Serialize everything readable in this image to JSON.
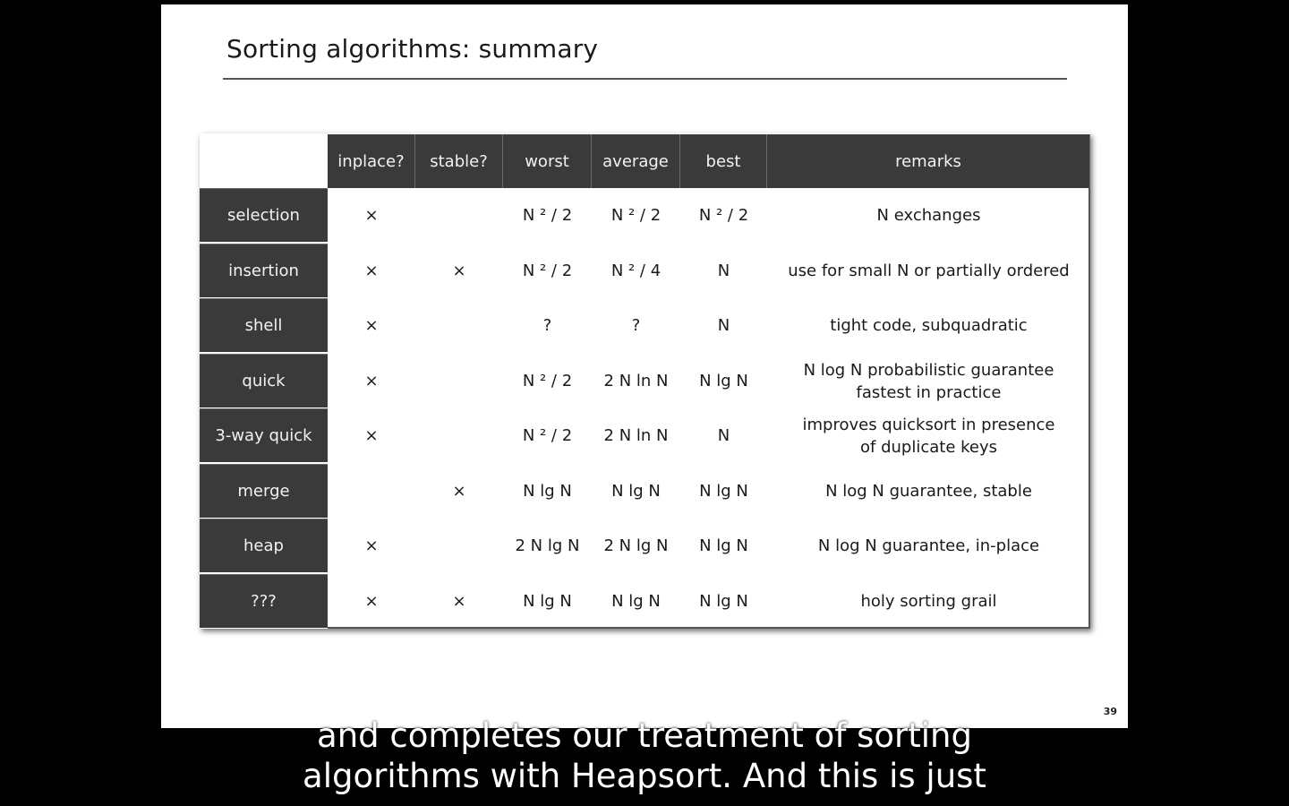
{
  "slide": {
    "title": "Sorting algorithms: summary",
    "page_number": "39"
  },
  "table": {
    "headers": [
      "inplace?",
      "stable?",
      "worst",
      "average",
      "best",
      "remarks"
    ],
    "rows": [
      {
        "name": "selection",
        "inplace": "×",
        "stable": "",
        "worst": "N ² / 2",
        "average": "N ² / 2",
        "best": "N ² / 2",
        "remarks": [
          "N exchanges"
        ]
      },
      {
        "name": "insertion",
        "inplace": "×",
        "stable": "×",
        "worst": "N ² / 2",
        "average": "N ² / 4",
        "best": "N",
        "remarks": [
          "use for small N or partially ordered"
        ]
      },
      {
        "name": "shell",
        "inplace": "×",
        "stable": "",
        "worst": "?",
        "average": "?",
        "best": "N",
        "remarks": [
          "tight code, subquadratic"
        ]
      },
      {
        "name": "quick",
        "inplace": "×",
        "stable": "",
        "worst": "N ² / 2",
        "average": "2 N ln N",
        "best": "N lg N",
        "remarks": [
          "N log N  probabilistic guarantee",
          "fastest in practice"
        ]
      },
      {
        "name": "3-way quick",
        "inplace": "×",
        "stable": "",
        "worst": "N ² / 2",
        "average": "2 N ln N",
        "best": "N",
        "remarks": [
          "improves quicksort in presence",
          "of duplicate keys"
        ]
      },
      {
        "name": "merge",
        "inplace": "",
        "stable": "×",
        "worst": "N lg N",
        "average": "N lg N",
        "best": "N lg N",
        "remarks": [
          "N log N  guarantee, stable"
        ]
      },
      {
        "name": "heap",
        "inplace": "×",
        "stable": "",
        "worst": "2 N lg N",
        "average": "2 N lg N",
        "best": "N lg N",
        "remarks": [
          "N log N  guarantee, in-place"
        ]
      },
      {
        "name": "???",
        "inplace": "×",
        "stable": "×",
        "worst": "N lg N",
        "average": "N lg N",
        "best": "N lg N",
        "remarks": [
          "holy sorting grail"
        ]
      }
    ]
  },
  "captions": {
    "line1": "and completes our treatment of sorting",
    "line2": "algorithms with Heapsort. And this is just"
  }
}
